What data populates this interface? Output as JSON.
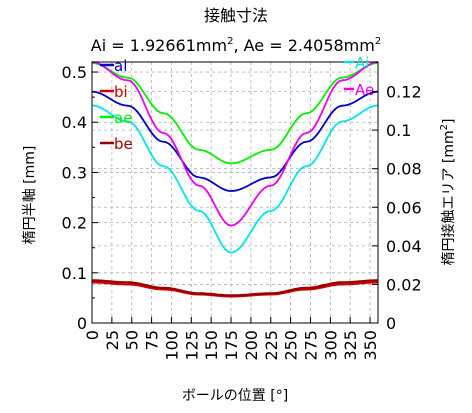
{
  "chart_data": {
    "type": "line",
    "title": "接触寸法",
    "subtitle_parts": [
      "Ai = 1.92661mm",
      "2",
      ", Ae = 2.4058mm",
      "2"
    ],
    "xlabel": "ボールの位置 [°]",
    "ylabel_left": "楕円半軸 [mm]",
    "ylabel_right_parts": [
      "楕円接触エリア [mm",
      "2",
      "]"
    ],
    "xlim": [
      0,
      360
    ],
    "ylim_left": [
      0,
      0.52
    ],
    "ylim_right": [
      0,
      0.1353
    ],
    "x_ticks": [
      "0",
      "25",
      "50",
      "75",
      "100",
      "125",
      "150",
      "175",
      "200",
      "225",
      "250",
      "275",
      "300",
      "325",
      "350"
    ],
    "y_ticks_left": [
      "0",
      "0.1",
      "0.2",
      "0.3",
      "0.4",
      "0.5"
    ],
    "y_ticks_right": [
      "0",
      "0.02",
      "0.04",
      "0.06",
      "0.08",
      "0.1",
      "0.12"
    ],
    "grid": true,
    "x": [
      0,
      45,
      90,
      135,
      175,
      225,
      270,
      315,
      360
    ],
    "series": [
      {
        "name": "ai",
        "axis": "left",
        "color": "#0000cc",
        "values": [
          0.461,
          0.433,
          0.361,
          0.29,
          0.263,
          0.29,
          0.361,
          0.433,
          0.461
        ]
      },
      {
        "name": "bi",
        "axis": "left",
        "color": "#cc0000",
        "values": [
          0.081,
          0.077,
          0.067,
          0.057,
          0.053,
          0.057,
          0.067,
          0.077,
          0.081
        ]
      },
      {
        "name": "ae",
        "axis": "left",
        "color": "#00ee00",
        "values": [
          0.518,
          0.489,
          0.418,
          0.345,
          0.318,
          0.345,
          0.418,
          0.489,
          0.518
        ]
      },
      {
        "name": "be",
        "axis": "left",
        "color": "#990000",
        "values": [
          0.085,
          0.081,
          0.07,
          0.059,
          0.055,
          0.059,
          0.07,
          0.081,
          0.085
        ]
      },
      {
        "name": "Ai",
        "axis": "right",
        "color": "#00e5e5",
        "values": [
          0.1128,
          0.1045,
          0.0813,
          0.0581,
          0.0365,
          0.0581,
          0.0813,
          0.1045,
          0.1128
        ]
      },
      {
        "name": "Ae",
        "axis": "right",
        "color": "#ee00ee",
        "values": [
          0.1353,
          0.1258,
          0.0985,
          0.0712,
          0.0505,
          0.0712,
          0.0985,
          0.1258,
          0.1353
        ]
      }
    ]
  }
}
